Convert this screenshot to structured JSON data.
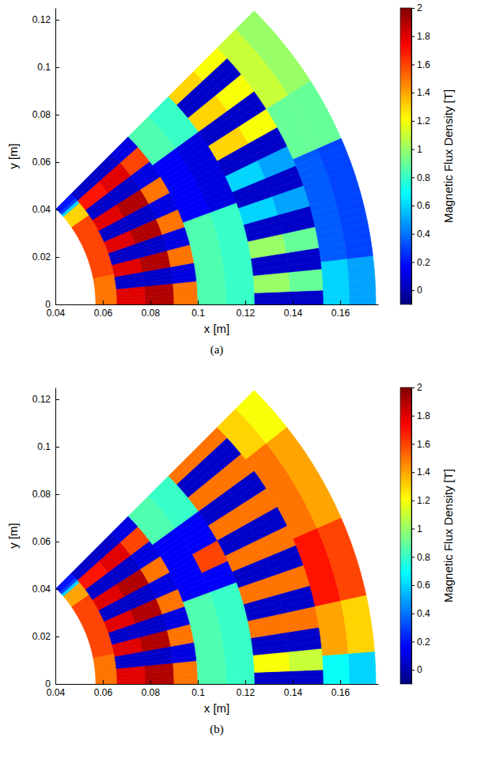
{
  "chart_data": [
    {
      "type": "heatmap",
      "caption": "(a)",
      "x_label": "x [m]",
      "y_label": "y [m]",
      "xlim": [
        0.04,
        0.176
      ],
      "ylim": [
        0,
        0.125
      ],
      "xticks": [
        0.04,
        0.06,
        0.08,
        0.1,
        0.12,
        0.14,
        0.16
      ],
      "yticks": [
        0,
        0.02,
        0.04,
        0.06,
        0.08,
        0.1,
        0.12
      ],
      "r_bins": [
        0.057,
        0.066,
        0.078,
        0.09,
        0.1,
        0.112,
        0.124,
        0.139,
        0.153,
        0.164,
        0.175
      ],
      "theta_bins": [
        0,
        1.125,
        2.25,
        3.375,
        4.5,
        5.625,
        6.75,
        7.875,
        9,
        10.125,
        11.25,
        12.375,
        13.5,
        14.625,
        15.75,
        16.875,
        18,
        19.125,
        20.25,
        21.375,
        22.5,
        23.625,
        24.75,
        25.875,
        27,
        28.125,
        29.25,
        30.375,
        31.5,
        32.625,
        33.75,
        34.875,
        36,
        37.125,
        38.25,
        39.375,
        40.5,
        41.625,
        42.75,
        43.875,
        45
      ],
      "cells": [
        [
          1.5,
          1.5,
          1.5,
          1.5,
          1.5,
          1.5,
          1.5,
          1.5,
          1.5,
          1.5,
          1.6,
          1.6,
          1.6,
          1.6,
          1.6,
          1.6,
          1.6,
          1.6,
          1.6,
          1.6,
          1.6,
          1.6,
          1.6,
          1.6,
          1.6,
          1.6,
          1.6,
          1.6,
          1.6,
          1.6,
          1.6,
          1.3,
          1.3,
          1.3,
          1.3,
          1.3,
          0.6,
          0.3,
          0.2,
          0.2
        ],
        [
          1.8,
          1.8,
          1.8,
          1.8,
          1.8,
          0.05,
          0.05,
          0.05,
          0.05,
          1.8,
          1.8,
          1.8,
          1.8,
          0.05,
          0.05,
          0.05,
          0.05,
          1.8,
          1.8,
          1.8,
          1.8,
          0.05,
          0.05,
          0.05,
          0.05,
          1.8,
          1.8,
          1.8,
          1.8,
          0.05,
          0.05,
          0.05,
          0.05,
          1.7,
          1.7,
          1.7,
          1.7,
          0.05,
          0.05,
          0.05
        ],
        [
          1.9,
          1.9,
          1.9,
          1.9,
          1.9,
          0.05,
          0.05,
          0.05,
          0.05,
          1.9,
          1.9,
          1.9,
          1.9,
          0.05,
          0.05,
          0.05,
          0.05,
          1.9,
          1.9,
          1.9,
          1.9,
          0.05,
          0.05,
          0.05,
          0.05,
          1.9,
          1.9,
          1.9,
          1.9,
          0.05,
          0.05,
          0.05,
          0.05,
          1.8,
          1.8,
          1.8,
          1.8,
          0.05,
          0.05,
          0.05
        ],
        [
          1.5,
          1.5,
          1.5,
          1.5,
          1.5,
          0.1,
          0.1,
          0.1,
          0.1,
          1.5,
          1.5,
          1.5,
          1.5,
          0.1,
          0.1,
          0.1,
          0.1,
          1.5,
          1.5,
          1.5,
          1.5,
          0.1,
          0.1,
          0.1,
          0.1,
          1.5,
          1.5,
          1.5,
          1.5,
          0.1,
          0.1,
          0.1,
          0.1,
          1.6,
          1.6,
          1.6,
          1.6,
          0.1,
          0.1,
          0.1
        ],
        [
          0.85,
          0.85,
          0.85,
          0.85,
          0.85,
          0.85,
          0.85,
          0.85,
          0.85,
          0.85,
          0.85,
          0.85,
          0.85,
          0.85,
          0.85,
          0.85,
          0.85,
          0.85,
          0.15,
          0.15,
          0.15,
          0.15,
          0.15,
          0.15,
          0.15,
          0.15,
          0.15,
          0.15,
          0.15,
          0.15,
          0.15,
          0.15,
          0.85,
          0.85,
          0.85,
          0.85,
          0.85,
          0.85,
          0.85,
          0.85
        ],
        [
          0.8,
          0.8,
          0.8,
          0.8,
          0.8,
          0.8,
          0.8,
          0.8,
          0.8,
          0.8,
          0.8,
          0.8,
          0.8,
          0.8,
          0.8,
          0.8,
          0.8,
          0.8,
          0.1,
          0.1,
          0.1,
          0.1,
          0.1,
          0.1,
          0.1,
          0.1,
          0.1,
          0.1,
          0.1,
          0.1,
          0.1,
          0.1,
          0.8,
          0.8,
          0.8,
          0.8,
          0.8,
          0.8,
          0.8,
          0.8
        ],
        [
          0.05,
          0.05,
          1,
          1,
          1,
          0.05,
          0.05,
          0.05,
          1,
          1,
          1,
          0.05,
          0.05,
          0.05,
          0.6,
          0.6,
          0.6,
          0.05,
          0.05,
          0.05,
          0.6,
          0.6,
          0.6,
          0.05,
          0.05,
          0.05,
          1.3,
          1.3,
          1.3,
          0.05,
          0.05,
          0.05,
          1.3,
          1.3,
          1.3,
          0.05,
          0.05,
          0.05,
          1.3,
          1.3
        ],
        [
          0.05,
          0.05,
          0.9,
          0.9,
          0.9,
          0.05,
          0.05,
          0.05,
          0.9,
          0.9,
          0.9,
          0.05,
          0.05,
          0.05,
          0.5,
          0.5,
          0.5,
          0.05,
          0.05,
          0.05,
          0.5,
          0.5,
          0.5,
          0.05,
          0.05,
          0.05,
          1.2,
          1.2,
          1.2,
          0.05,
          0.05,
          0.05,
          1.2,
          1.2,
          1.2,
          0.05,
          0.05,
          0.05,
          1.2,
          1.2
        ],
        [
          0.6,
          0.6,
          0.6,
          0.6,
          0.6,
          0.6,
          0.35,
          0.35,
          0.35,
          0.35,
          0.35,
          0.35,
          0.35,
          0.35,
          0.35,
          0.35,
          0.35,
          0.35,
          0.35,
          0.35,
          0.35,
          0.9,
          0.9,
          0.9,
          0.9,
          0.9,
          0.9,
          0.9,
          0.9,
          1.1,
          1.1,
          1.1,
          1.1,
          1.1,
          1.1,
          1.1,
          1.1,
          1.1,
          1.1,
          1.1
        ],
        [
          0.5,
          0.5,
          0.5,
          0.5,
          0.5,
          0.5,
          0.3,
          0.3,
          0.3,
          0.3,
          0.3,
          0.3,
          0.3,
          0.3,
          0.3,
          0.3,
          0.3,
          0.3,
          0.3,
          0.3,
          0.3,
          0.9,
          0.9,
          0.9,
          0.9,
          0.9,
          0.9,
          0.9,
          0.9,
          1,
          1,
          1,
          1,
          1,
          1,
          1,
          1,
          1,
          1,
          1
        ]
      ],
      "colorbar": {
        "label": "Magnetic Flux Density [T]",
        "range": [
          -0.1,
          2
        ],
        "ticks": [
          0,
          0.2,
          0.4,
          0.6,
          0.8,
          1,
          1.2,
          1.4,
          1.6,
          1.8,
          2
        ]
      }
    },
    {
      "type": "heatmap",
      "caption": "(b)",
      "x_label": "x [m]",
      "y_label": "y [m]",
      "xlim": [
        0.04,
        0.176
      ],
      "ylim": [
        0,
        0.125
      ],
      "xticks": [
        0.04,
        0.06,
        0.08,
        0.1,
        0.12,
        0.14,
        0.16
      ],
      "yticks": [
        0,
        0.02,
        0.04,
        0.06,
        0.08,
        0.1,
        0.12
      ],
      "r_bins": [
        0.057,
        0.066,
        0.078,
        0.09,
        0.1,
        0.112,
        0.124,
        0.139,
        0.153,
        0.164,
        0.175
      ],
      "theta_bins": [
        0,
        1.125,
        2.25,
        3.375,
        4.5,
        5.625,
        6.75,
        7.875,
        9,
        10.125,
        11.25,
        12.375,
        13.5,
        14.625,
        15.75,
        16.875,
        18,
        19.125,
        20.25,
        21.375,
        22.5,
        23.625,
        24.75,
        25.875,
        27,
        28.125,
        29.25,
        30.375,
        31.5,
        32.625,
        33.75,
        34.875,
        36,
        37.125,
        38.25,
        39.375,
        40.5,
        41.625,
        42.75,
        43.875,
        45
      ],
      "cells": [
        [
          1.5,
          1.5,
          1.5,
          1.5,
          1.5,
          1.5,
          1.5,
          1.5,
          1.5,
          1.5,
          1.6,
          1.6,
          1.6,
          1.6,
          1.6,
          1.6,
          1.6,
          1.6,
          1.6,
          1.6,
          1.6,
          1.6,
          1.6,
          1.6,
          1.6,
          1.6,
          1.6,
          1.6,
          1.6,
          1.6,
          1.6,
          1.4,
          1.4,
          1.4,
          1.4,
          1.4,
          0.6,
          0.3,
          0.2,
          0.2
        ],
        [
          1.8,
          1.8,
          1.8,
          1.8,
          1.8,
          0.05,
          0.05,
          0.05,
          0.05,
          1.8,
          1.8,
          1.8,
          1.8,
          0.05,
          0.05,
          0.05,
          0.05,
          1.8,
          1.8,
          1.8,
          1.8,
          0.05,
          0.05,
          0.05,
          0.05,
          1.8,
          1.8,
          1.8,
          1.8,
          0.05,
          0.05,
          0.05,
          0.05,
          1.7,
          1.7,
          1.7,
          1.7,
          0.05,
          0.05,
          0.05
        ],
        [
          1.9,
          1.9,
          1.9,
          1.9,
          1.9,
          0.05,
          0.05,
          0.05,
          0.05,
          1.9,
          1.9,
          1.9,
          1.9,
          0.05,
          0.05,
          0.05,
          0.05,
          1.9,
          1.9,
          1.9,
          1.9,
          0.05,
          0.05,
          0.05,
          0.05,
          1.9,
          1.9,
          1.9,
          1.9,
          0.05,
          0.05,
          0.05,
          0.05,
          1.8,
          1.8,
          1.8,
          1.8,
          0.05,
          0.05,
          0.05
        ],
        [
          1.5,
          1.5,
          1.5,
          1.5,
          1.5,
          0.1,
          0.1,
          0.1,
          0.1,
          1.5,
          1.5,
          1.5,
          1.5,
          0.1,
          0.1,
          0.1,
          0.1,
          1.5,
          1.5,
          1.5,
          1.5,
          0.1,
          0.1,
          0.1,
          0.1,
          1.5,
          1.5,
          1.5,
          1.5,
          0.1,
          0.1,
          0.1,
          0.1,
          1.6,
          1.6,
          1.6,
          1.6,
          0.1,
          0.1,
          0.1
        ],
        [
          0.85,
          0.85,
          0.85,
          0.85,
          0.85,
          0.85,
          0.85,
          0.85,
          0.85,
          0.85,
          0.85,
          0.85,
          0.85,
          0.85,
          0.85,
          0.85,
          0.85,
          0.85,
          0.15,
          0.15,
          0.15,
          0.15,
          0.15,
          0.15,
          0.15,
          0.15,
          0.15,
          0.15,
          0.15,
          0.15,
          0.15,
          0.15,
          0.85,
          0.85,
          0.85,
          0.85,
          0.85,
          0.85,
          0.85,
          0.85
        ],
        [
          0.8,
          0.8,
          0.8,
          0.8,
          0.8,
          0.8,
          0.8,
          0.8,
          0.8,
          0.8,
          0.8,
          0.8,
          0.8,
          0.8,
          0.8,
          0.8,
          0.8,
          0.8,
          0.15,
          0.15,
          0.15,
          0.15,
          1.6,
          1.6,
          1.6,
          1.6,
          0.15,
          0.15,
          0.15,
          0.15,
          0.15,
          0.15,
          0.8,
          0.8,
          0.8,
          0.8,
          0.8,
          0.8,
          0.8,
          0.8
        ],
        [
          0.05,
          0.05,
          1.2,
          1.2,
          1.2,
          0.05,
          0.05,
          0.05,
          1.5,
          1.5,
          1.5,
          0.05,
          0.05,
          0.05,
          1.5,
          1.5,
          1.5,
          0.05,
          0.05,
          0.05,
          1.5,
          1.5,
          1.5,
          0.05,
          0.05,
          0.05,
          1.5,
          1.5,
          1.5,
          0.05,
          0.05,
          0.05,
          1.5,
          1.5,
          1.5,
          0.05,
          0.05,
          0.05,
          1.5,
          1.5
        ],
        [
          0.05,
          0.05,
          1.1,
          1.1,
          1.1,
          0.05,
          0.05,
          0.05,
          1.5,
          1.5,
          1.5,
          0.05,
          0.05,
          0.05,
          1.5,
          1.5,
          1.5,
          0.05,
          0.05,
          0.05,
          1.5,
          1.5,
          1.5,
          0.05,
          0.05,
          0.05,
          1.5,
          1.5,
          1.5,
          0.05,
          0.05,
          0.05,
          1.5,
          1.5,
          1.5,
          0.05,
          0.05,
          0.05,
          1.5,
          1.5
        ],
        [
          0.7,
          0.7,
          0.7,
          0.7,
          1.4,
          1.4,
          1.4,
          1.4,
          1.4,
          1.4,
          1.4,
          1.7,
          1.7,
          1.7,
          1.7,
          1.7,
          1.7,
          1.7,
          1.7,
          1.7,
          1.7,
          1.5,
          1.5,
          1.5,
          1.5,
          1.5,
          1.5,
          1.5,
          1.5,
          1.5,
          1.5,
          1.5,
          1.5,
          1.5,
          1.3,
          1.3,
          1.3,
          1.3,
          1.3,
          1.3
        ],
        [
          0.6,
          0.6,
          0.6,
          0.6,
          1.3,
          1.3,
          1.3,
          1.3,
          1.3,
          1.3,
          1.3,
          1.6,
          1.6,
          1.6,
          1.6,
          1.6,
          1.6,
          1.6,
          1.6,
          1.6,
          1.6,
          1.4,
          1.4,
          1.4,
          1.4,
          1.4,
          1.4,
          1.4,
          1.4,
          1.4,
          1.4,
          1.4,
          1.4,
          1.4,
          1.2,
          1.2,
          1.2,
          1.2,
          1.2,
          1.2
        ]
      ],
      "colorbar": {
        "label": "Magnetic Flux Density [T]",
        "range": [
          -0.1,
          2
        ],
        "ticks": [
          0,
          0.2,
          0.4,
          0.6,
          0.8,
          1,
          1.2,
          1.4,
          1.6,
          1.8,
          2
        ]
      }
    }
  ]
}
